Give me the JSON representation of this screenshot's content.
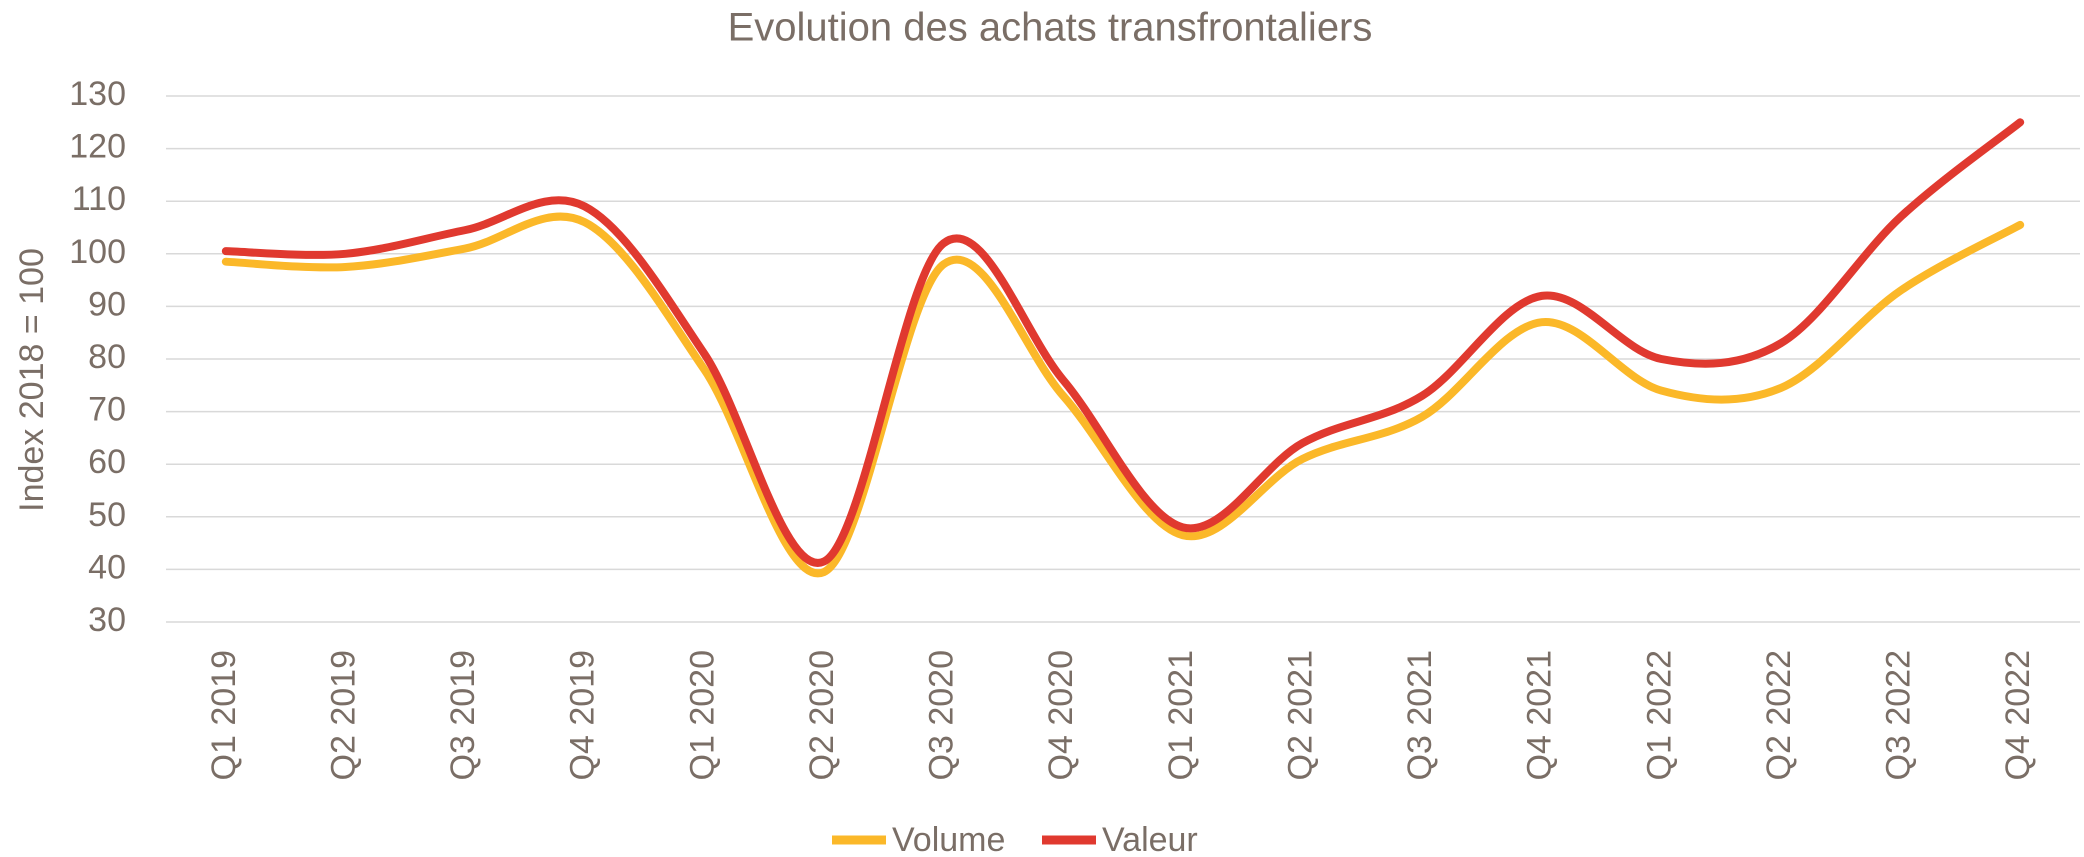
{
  "chart_data": {
    "type": "line",
    "title": "Evolution des achats transfrontaliers",
    "y_label": "Index 2018 = 100",
    "categories": [
      "Q1 2019",
      "Q2 2019",
      "Q3 2019",
      "Q4 2019",
      "Q1 2020",
      "Q2 2020",
      "Q3 2020",
      "Q4 2020",
      "Q1 2021",
      "Q2 2021",
      "Q3 2021",
      "Q4 2021",
      "Q1 2022",
      "Q2 2022",
      "Q3 2022",
      "Q4 2022"
    ],
    "series": [
      {
        "name": "Volume",
        "color": "#fbb829",
        "values": [
          98.5,
          97.5,
          101,
          106,
          78,
          39.5,
          98,
          73,
          46.5,
          61,
          69,
          87,
          74,
          74.5,
          93,
          105.5
        ]
      },
      {
        "name": "Valeur",
        "color": "#e0392f",
        "values": [
          100.5,
          100,
          104.5,
          109,
          81,
          41.5,
          102,
          76,
          48,
          64,
          73,
          92,
          80,
          83,
          107,
          125
        ]
      }
    ],
    "ylim": [
      30,
      130
    ],
    "yticks": [
      30,
      40,
      50,
      60,
      70,
      80,
      90,
      100,
      110,
      120,
      130
    ],
    "grid": true,
    "smooth": true,
    "legend": "bottom"
  }
}
